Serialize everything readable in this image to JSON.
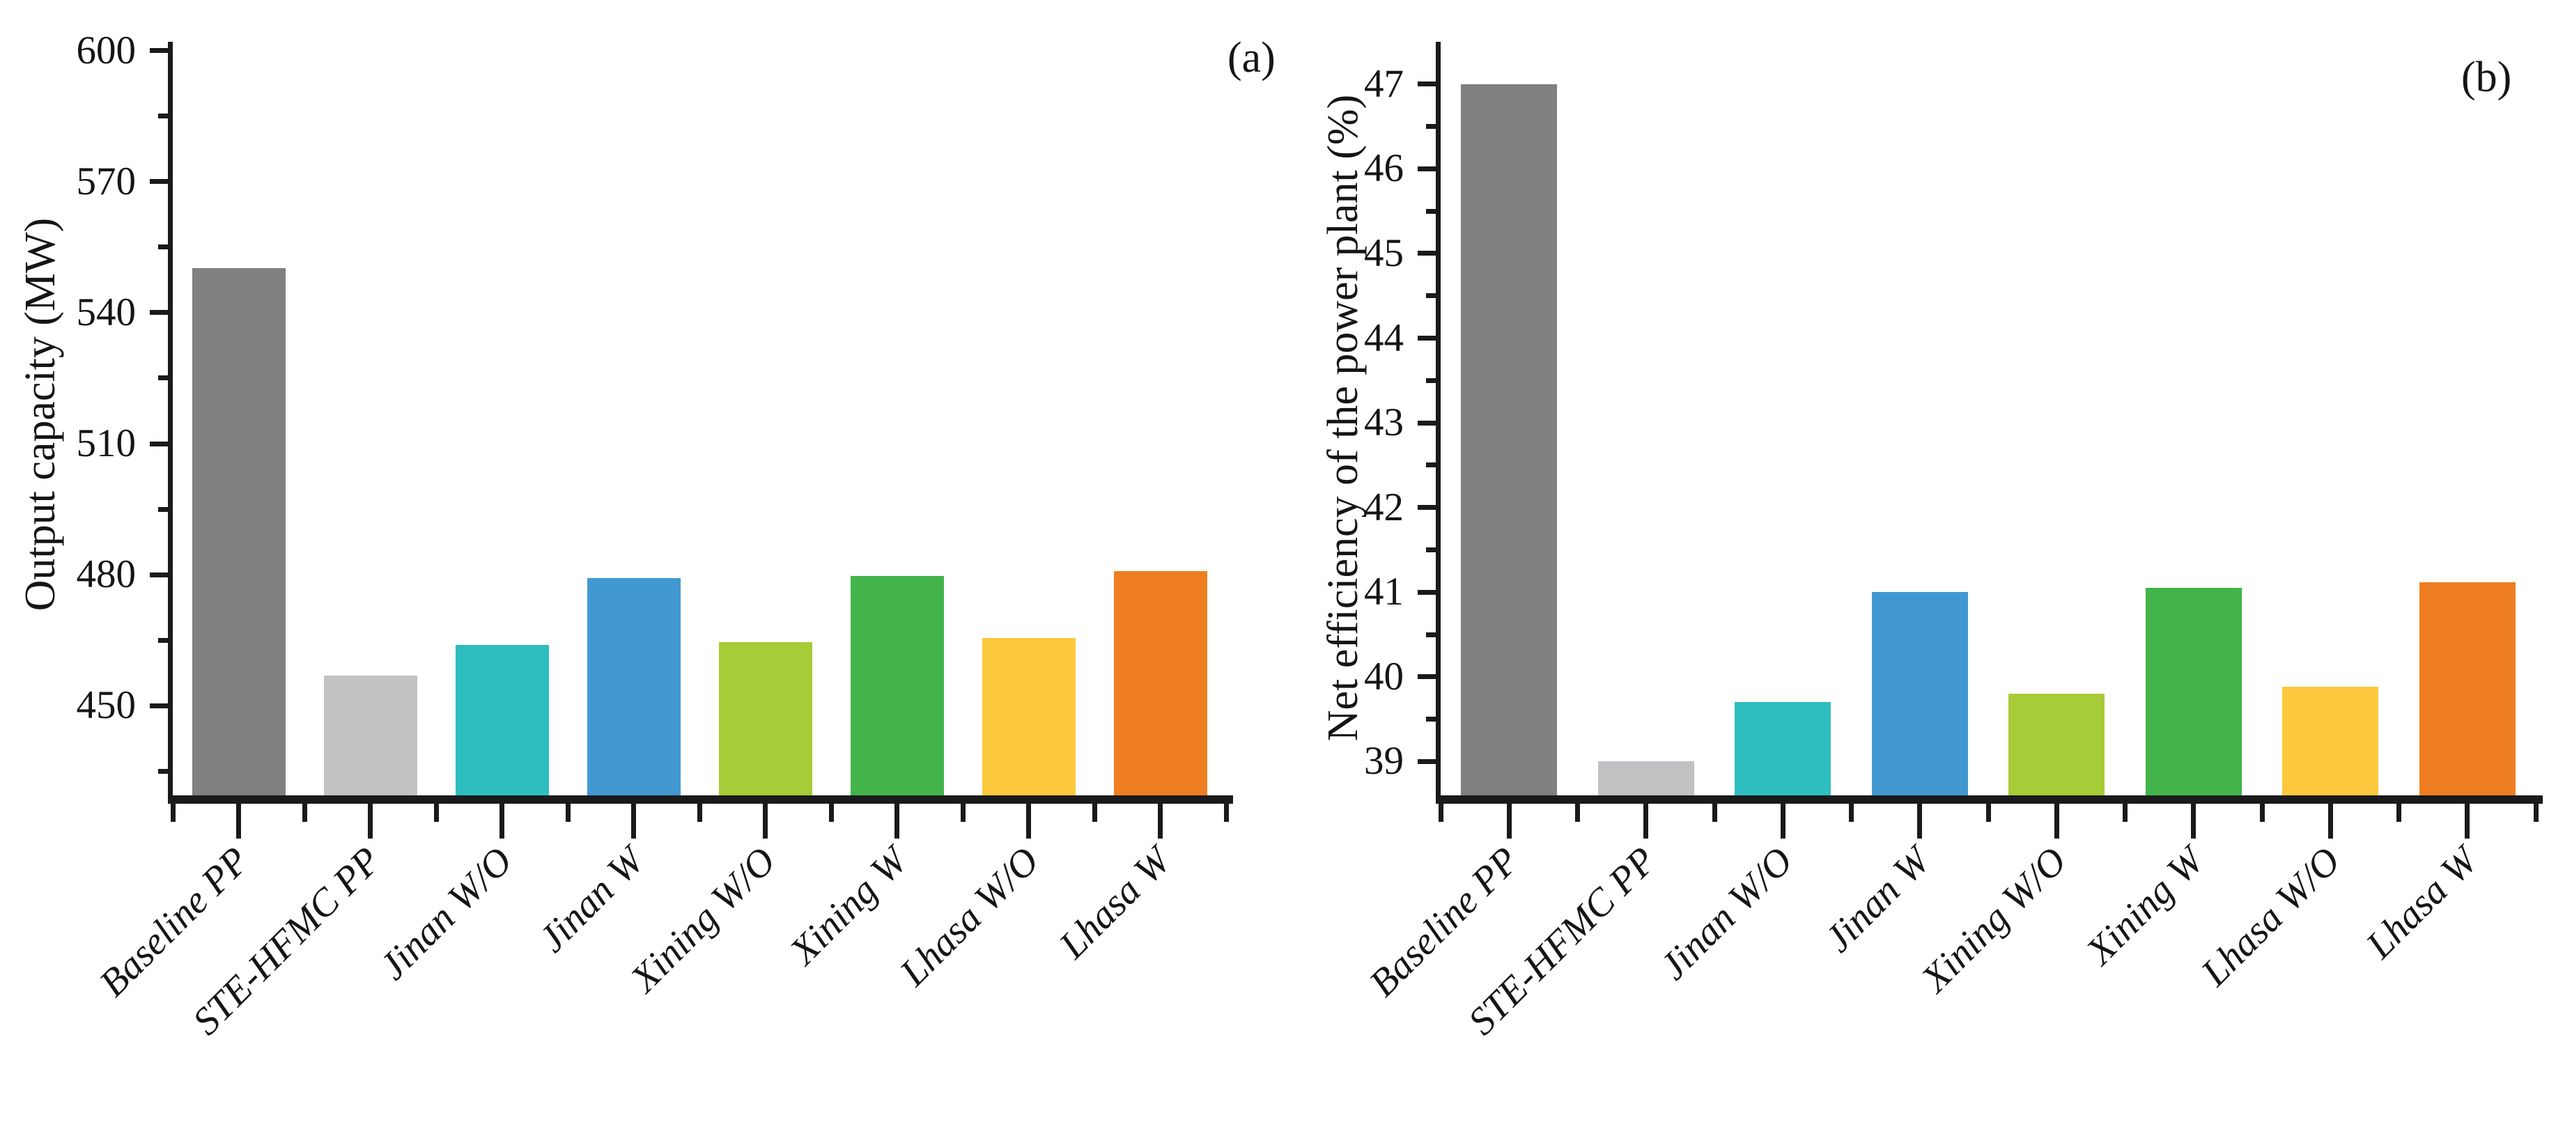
{
  "figure": {
    "background": "#ffffff",
    "axis_color": "#1a1a1a",
    "text_color": "#151515"
  },
  "chart_data": [
    {
      "type": "bar",
      "panel_label": "(a)",
      "title": "",
      "xlabel": "",
      "ylabel": "Output capacity (MW)",
      "categories": [
        "Baseline PP",
        "STE-HFMC PP",
        "Jinan W/O",
        "Jinan W",
        "Xining W/O",
        "Xining W",
        "Lhasa W/O",
        "Lhasa W"
      ],
      "values": [
        550.2,
        457.0,
        464.0,
        479.2,
        464.5,
        479.7,
        465.5,
        480.9
      ],
      "ylim": [
        429.5,
        602.0
      ],
      "yticks_major": [
        450,
        480,
        510,
        540,
        570,
        600
      ],
      "yticks_minor": [
        435,
        465,
        495,
        525,
        555,
        585
      ],
      "bar_colors": [
        "#808080",
        "#c2c2c4",
        "#2ebec0",
        "#4299d2",
        "#a8cc38",
        "#43b34b",
        "#fdc83e",
        "#ef7e22"
      ],
      "grid": false,
      "legend": "none"
    },
    {
      "type": "bar",
      "panel_label": "(b)",
      "title": "",
      "xlabel": "",
      "ylabel": "Net efficiency of the power plant (%)",
      "categories": [
        "Baseline PP",
        "STE-HFMC PP",
        "Jinan W/O",
        "Jinan W",
        "Xining W/O",
        "Xining W",
        "Lhasa W/O",
        "Lhasa W"
      ],
      "values": [
        47.0,
        39.0,
        39.7,
        41.0,
        39.8,
        41.05,
        39.88,
        41.12
      ],
      "ylim": [
        38.6,
        47.5
      ],
      "yticks_major": [
        39,
        40,
        41,
        42,
        43,
        44,
        45,
        46,
        47
      ],
      "yticks_minor": [
        39.5,
        40.5,
        41.5,
        42.5,
        43.5,
        44.5,
        45.5,
        46.5
      ],
      "bar_colors": [
        "#808080",
        "#c2c2c4",
        "#2ebec0",
        "#4299d2",
        "#a8cc38",
        "#43b34b",
        "#fdc83e",
        "#ef7e22"
      ],
      "grid": false,
      "legend": "none"
    }
  ]
}
